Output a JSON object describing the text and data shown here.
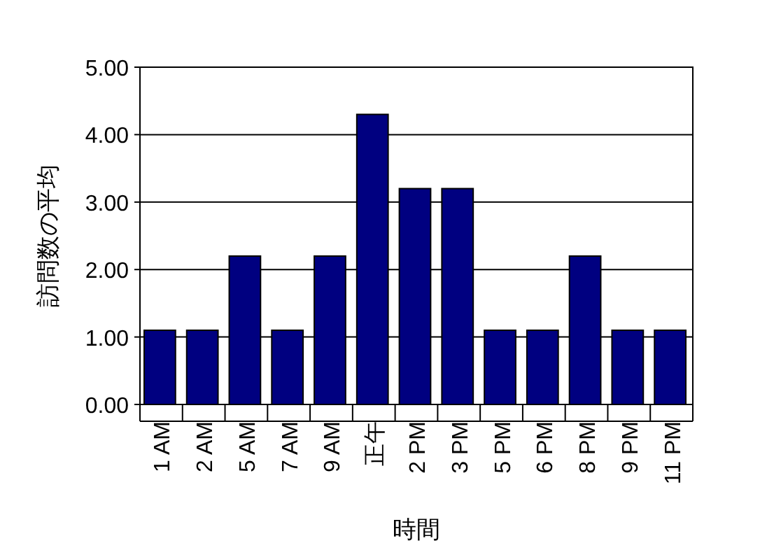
{
  "chart_data": {
    "type": "bar",
    "xlabel": "時間",
    "ylabel": "訪問数の平均",
    "categories": [
      "1 AM",
      "2 AM",
      "5 AM",
      "7 AM",
      "9 AM",
      "正午",
      "2 PM",
      "3 PM",
      "5 PM",
      "6 PM",
      "8 PM",
      "9 PM",
      "11 PM"
    ],
    "values": [
      1.1,
      1.1,
      2.2,
      1.1,
      2.2,
      4.3,
      3.2,
      3.2,
      1.1,
      1.1,
      2.2,
      1.1,
      1.1
    ],
    "color": "#000080",
    "ylim": [
      0,
      5
    ],
    "yticks": [
      {
        "value": 0,
        "label": "0.00"
      },
      {
        "value": 1,
        "label": "1.00"
      },
      {
        "value": 2,
        "label": "2.00"
      },
      {
        "value": 3,
        "label": "3.00"
      },
      {
        "value": 4,
        "label": "4.00"
      },
      {
        "value": 5,
        "label": "5.00"
      }
    ],
    "grid": "y"
  }
}
